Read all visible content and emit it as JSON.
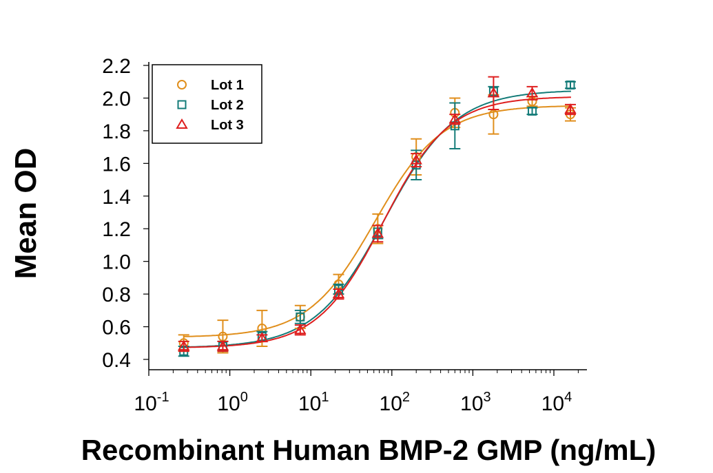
{
  "chart_data": {
    "type": "scatter",
    "title": "",
    "xlabel": "Recombinant Human BMP-2 GMP (ng/mL)",
    "ylabel": "Mean OD",
    "xscale": "log",
    "xlim": [
      0.1,
      25000
    ],
    "ylim": [
      0.35,
      2.22
    ],
    "grid": false,
    "legend_position": "top-left",
    "x_ticks": [
      {
        "value": 0.1,
        "base": "10",
        "exp": "-1"
      },
      {
        "value": 1,
        "base": "10",
        "exp": "0"
      },
      {
        "value": 10,
        "base": "10",
        "exp": "1"
      },
      {
        "value": 100,
        "base": "10",
        "exp": "2"
      },
      {
        "value": 1000,
        "base": "10",
        "exp": "3"
      },
      {
        "value": 10000,
        "base": "10",
        "exp": "4"
      }
    ],
    "y_ticks": [
      {
        "value": 0.4,
        "label": "0.4"
      },
      {
        "value": 0.6,
        "label": "0.6"
      },
      {
        "value": 0.8,
        "label": "0.8"
      },
      {
        "value": 1.0,
        "label": "1.0"
      },
      {
        "value": 1.2,
        "label": "1.2"
      },
      {
        "value": 1.4,
        "label": "1.4"
      },
      {
        "value": 1.6,
        "label": "1.6"
      },
      {
        "value": 1.8,
        "label": "1.8"
      },
      {
        "value": 2.0,
        "label": "2.0"
      },
      {
        "value": 2.2,
        "label": "2.2"
      }
    ],
    "x": [
      0.27,
      0.82,
      2.5,
      7.4,
      22,
      67,
      200,
      600,
      1800,
      5400,
      16000
    ],
    "series": [
      {
        "name": "Lot 1",
        "marker": "circle",
        "color": "#E08E1B",
        "values": [
          0.5,
          0.54,
          0.59,
          0.66,
          0.86,
          1.2,
          1.64,
          1.91,
          1.9,
          1.98,
          1.9
        ],
        "errors": [
          0.05,
          0.1,
          0.11,
          0.07,
          0.06,
          0.09,
          0.11,
          0.09,
          0.12,
          0.03,
          0.04
        ],
        "fit": {
          "bottom": 0.535,
          "top": 1.955,
          "ec50": 62,
          "hill": 1.05
        }
      },
      {
        "name": "Lot 2",
        "marker": "square",
        "color": "#137B78",
        "values": [
          0.45,
          0.48,
          0.54,
          0.66,
          0.83,
          1.18,
          1.59,
          1.83,
          2.04,
          1.92,
          2.08
        ],
        "errors": [
          0.03,
          0.03,
          0.03,
          0.04,
          0.03,
          0.04,
          0.09,
          0.14,
          0.03,
          0.02,
          0.02
        ],
        "fit": {
          "bottom": 0.47,
          "top": 2.05,
          "ec50": 82,
          "hill": 1.0
        }
      },
      {
        "name": "Lot 3",
        "marker": "triangle",
        "color": "#DE1E1E",
        "values": [
          0.48,
          0.48,
          0.53,
          0.58,
          0.8,
          1.17,
          1.62,
          1.87,
          2.03,
          2.03,
          1.93
        ],
        "errors": [
          0.03,
          0.03,
          0.02,
          0.03,
          0.03,
          0.05,
          0.04,
          0.03,
          0.1,
          0.04,
          0.03
        ],
        "fit": {
          "bottom": 0.47,
          "top": 2.01,
          "ec50": 78,
          "hill": 1.07
        }
      }
    ]
  }
}
